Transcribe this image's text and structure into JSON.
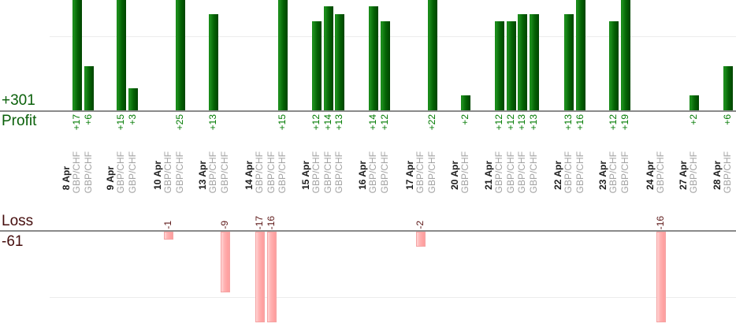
{
  "summary": {
    "profit_total": "+301",
    "profit_caption": "Profit",
    "loss_caption": "Loss",
    "loss_total": "-61"
  },
  "colors": {
    "profit_bar": "#046204",
    "profit_text": "#007a00",
    "loss_bar": "#ffb3b3",
    "loss_text": "#5c1717",
    "axis_line": "#8a8a8a",
    "gridline": "#ececec",
    "symbol_text": "#a3a3a3",
    "date_text": "#1c1c1c"
  },
  "chart_data": {
    "type": "bar",
    "orientation": "vertical",
    "description": "Daily trade results split into an upper Profit pane and a lower Loss pane; x-axis entries are rotated date groups with one GBP/CHF sub-label per trade",
    "profit_pane": {
      "caption": "Profit",
      "total": 301,
      "total_label": "+301",
      "gridline_value": 10,
      "visible_value_range": [
        0,
        15
      ],
      "note": "bars above +15 are clipped by the top edge"
    },
    "loss_pane": {
      "caption": "Loss",
      "total": -61,
      "total_label": "-61",
      "gridline_value": -10,
      "visible_value_range": [
        0,
        -13.5
      ],
      "note": "bars below -13.5 are clipped by the pane bottom"
    },
    "x_axis": {
      "tick_label_rotation": -90,
      "grid": "single horizontal gridline per pane"
    },
    "legend": "none",
    "groups": [
      {
        "date": "8 Apr",
        "entries": [
          {
            "symbol": "GBP/CHF",
            "value": 17,
            "label": "+17"
          },
          {
            "symbol": "GBP/CHF",
            "value": 6,
            "label": "+6"
          }
        ]
      },
      {
        "date": "9 Apr",
        "entries": [
          {
            "symbol": "GBP/CHF",
            "value": 15,
            "label": "+15"
          },
          {
            "symbol": "GBP/CHF",
            "value": 3,
            "label": "+3"
          }
        ]
      },
      {
        "date": "10 Apr",
        "entries": [
          {
            "symbol": "GBP/CHF",
            "value": -1,
            "label": "-1"
          },
          {
            "symbol": "GBP/CHF",
            "value": 25,
            "label": "+25"
          }
        ]
      },
      {
        "date": "13 Apr",
        "entries": [
          {
            "symbol": "GBP/CHF",
            "value": 13,
            "label": "+13"
          },
          {
            "symbol": "GBP/CHF",
            "value": -9,
            "label": "-9"
          }
        ]
      },
      {
        "date": "14 Apr",
        "entries": [
          {
            "symbol": "GBP/CHF",
            "value": -17,
            "label": "-17"
          },
          {
            "symbol": "GBP/CHF",
            "value": -16,
            "label": "-16"
          },
          {
            "symbol": "GBP/CHF",
            "value": 15,
            "label": "+15"
          }
        ]
      },
      {
        "date": "15 Apr",
        "entries": [
          {
            "symbol": "GBP/CHF",
            "value": 12,
            "label": "+12"
          },
          {
            "symbol": "GBP/CHF",
            "value": 14,
            "label": "+14"
          },
          {
            "symbol": "GBP/CHF",
            "value": 13,
            "label": "+13"
          }
        ]
      },
      {
        "date": "16 Apr",
        "entries": [
          {
            "symbol": "GBP/CHF",
            "value": 14,
            "label": "+14"
          },
          {
            "symbol": "GBP/CHF",
            "value": 12,
            "label": "+12"
          }
        ]
      },
      {
        "date": "17 Apr",
        "entries": [
          {
            "symbol": "GBP/CHF",
            "value": -2,
            "label": "-2"
          },
          {
            "symbol": "GBP/CHF",
            "value": 22,
            "label": "+22"
          }
        ]
      },
      {
        "date": "20 Apr",
        "entries": [
          {
            "symbol": "GBP/CHF",
            "value": 2,
            "label": "+2"
          }
        ]
      },
      {
        "date": "21 Apr",
        "entries": [
          {
            "symbol": "GBP/CHF",
            "value": 12,
            "label": "+12"
          },
          {
            "symbol": "GBP/CHF",
            "value": 12,
            "label": "+12"
          },
          {
            "symbol": "GBP/CHF",
            "value": 13,
            "label": "+13"
          },
          {
            "symbol": "GBP/CHF",
            "value": 13,
            "label": "+13"
          }
        ]
      },
      {
        "date": "22 Apr",
        "entries": [
          {
            "symbol": "GBP/CHF",
            "value": 13,
            "label": "+13"
          },
          {
            "symbol": "GBP/CHF",
            "value": 16,
            "label": "+16"
          }
        ]
      },
      {
        "date": "23 Apr",
        "entries": [
          {
            "symbol": "GBP/CHF",
            "value": 12,
            "label": "+12"
          },
          {
            "symbol": "GBP/CHF",
            "value": 19,
            "label": "+19"
          }
        ]
      },
      {
        "date": "24 Apr",
        "entries": [
          {
            "symbol": "GBP/CHF",
            "value": -16,
            "label": "-16"
          }
        ]
      },
      {
        "date": "27 Apr",
        "entries": [
          {
            "symbol": "GBP/CHF",
            "value": 2,
            "label": "+2"
          }
        ]
      },
      {
        "date": "28 Apr",
        "entries": [
          {
            "symbol": "GBP/CHF",
            "value": 6,
            "label": "+6"
          }
        ]
      }
    ]
  }
}
